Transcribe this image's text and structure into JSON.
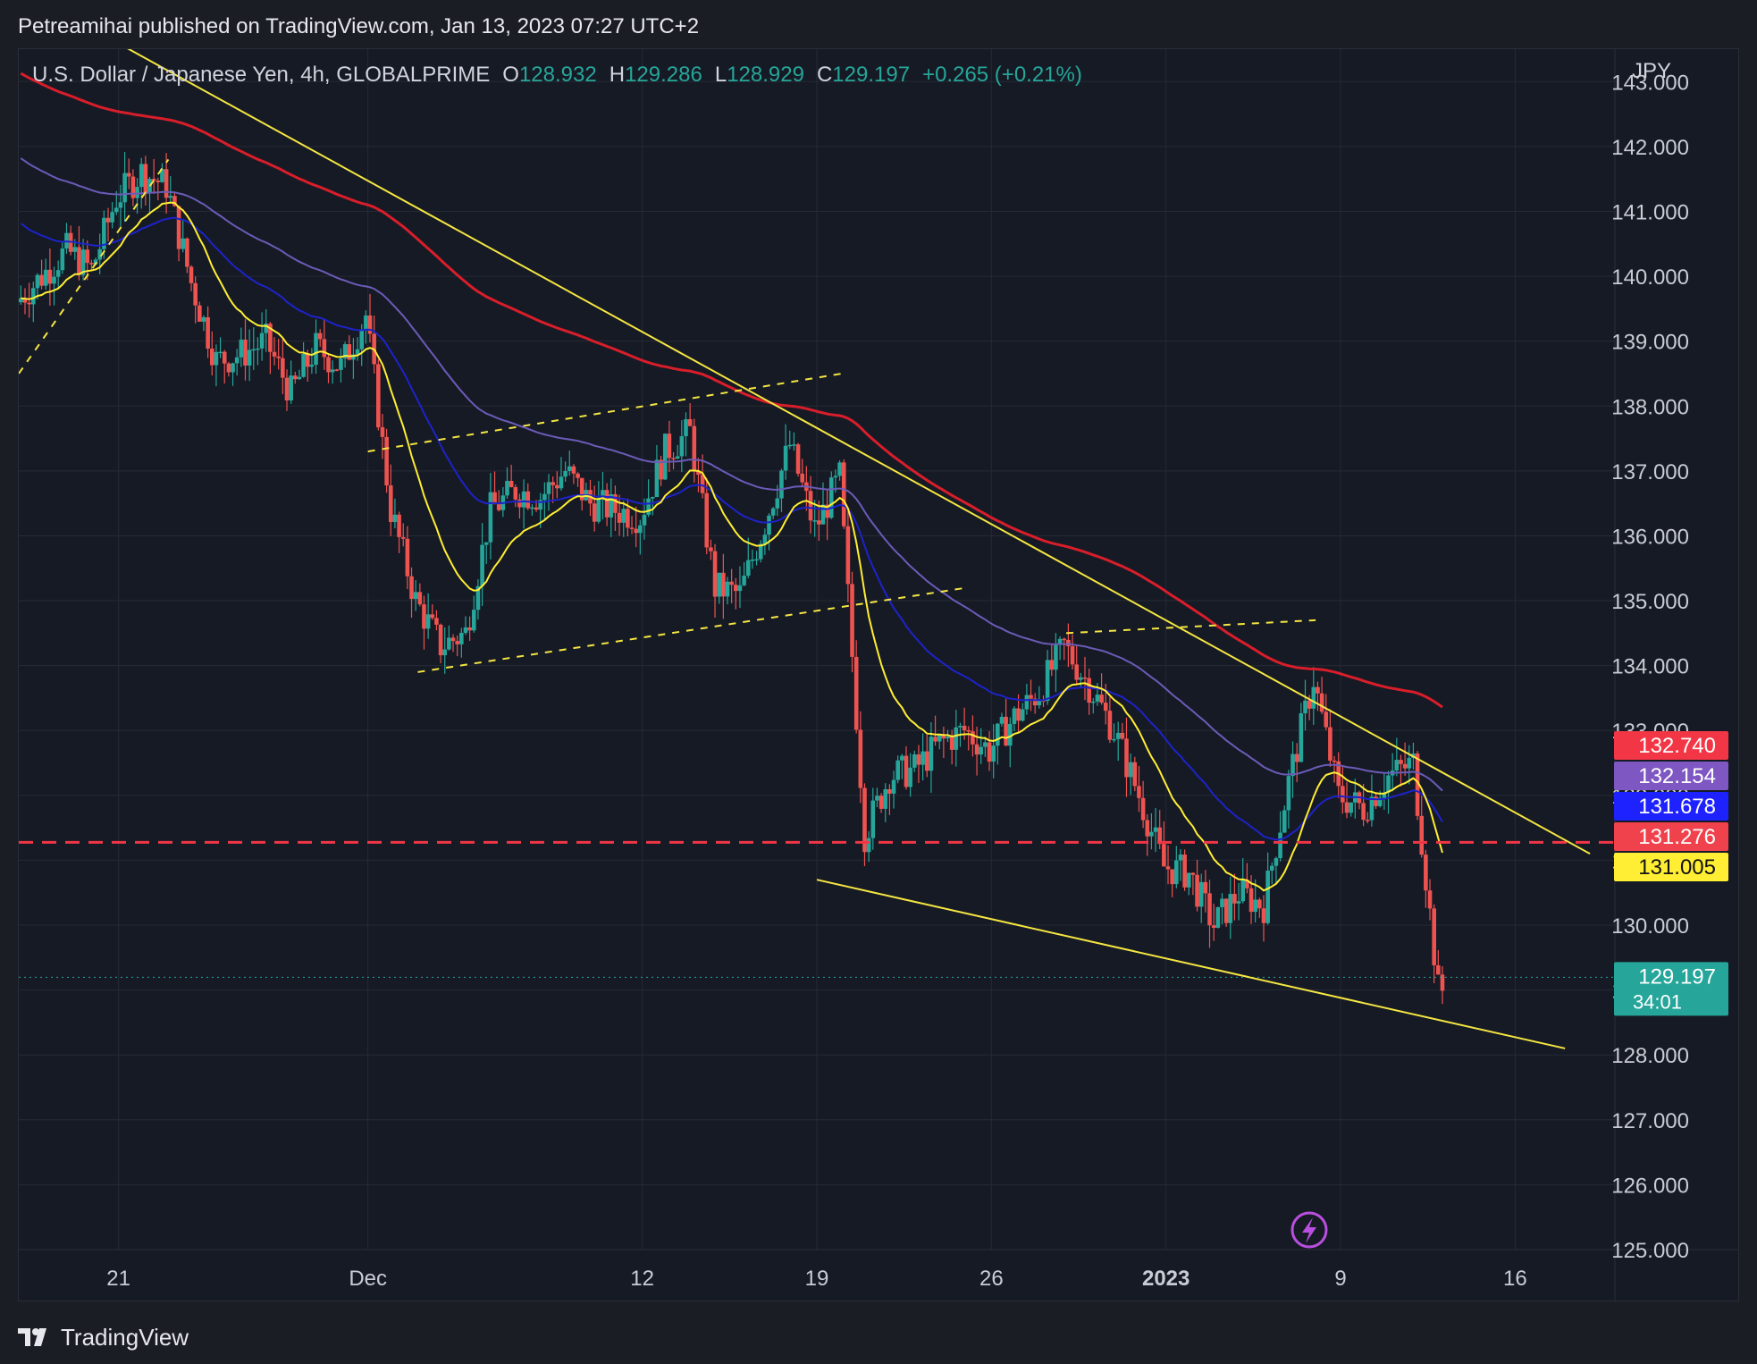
{
  "publisher": {
    "text": "Petreamihai published on TradingView.com, Jan 13, 2023 07:27 UTC+2"
  },
  "header": {
    "symbol": "U.S. Dollar / Japanese Yen, 4h, GLOBALPRIME",
    "open_label": "O",
    "open": "128.932",
    "high_label": "H",
    "high": "129.286",
    "low_label": "L",
    "low": "128.929",
    "close_label": "C",
    "close": "129.197",
    "change": "+0.265 (+0.21%)"
  },
  "axis": {
    "currency": "JPY"
  },
  "badges": [
    {
      "value": "132.740",
      "color": "#f23645"
    },
    {
      "value": "132.154",
      "color": "#7e57c2"
    },
    {
      "value": "131.678",
      "color": "#1e22ff"
    },
    {
      "value": "131.276",
      "color": "#f0424c"
    },
    {
      "value": "131.005",
      "color": "#ffee33"
    }
  ],
  "last_price": {
    "value": "129.197",
    "countdown": "34:01",
    "color": "#26a69a"
  },
  "footer": {
    "brand": "TradingView"
  },
  "colors": {
    "up": "#26a69a",
    "down": "#ef5350",
    "ma_red": "#d81e2a",
    "ma_purple": "#6b5bb8",
    "ma_blue": "#1d23c8",
    "ma_yellow": "#ffee33",
    "trendline": "#f5e642",
    "level": "#f23645"
  },
  "icons": {
    "alert": "lightning-icon",
    "logo": "tradingview-logo-icon"
  },
  "chart_data": {
    "type": "candlestick",
    "title": "U.S. Dollar / Japanese Yen, 4h, GLOBALPRIME",
    "ylim": [
      125,
      143.5
    ],
    "y_ticks": [
      "125.000",
      "126.000",
      "127.000",
      "128.000",
      "129.000",
      "130.000",
      "131.000",
      "132.000",
      "133.000",
      "134.000",
      "135.000",
      "136.000",
      "137.000",
      "138.000",
      "139.000",
      "140.000",
      "141.000",
      "142.000",
      "143.000"
    ],
    "x_ticks": [
      {
        "label": "21",
        "date": "2022-11-21",
        "bold": false
      },
      {
        "label": "Dec",
        "date": "2022-12-01",
        "bold": false
      },
      {
        "label": "12",
        "date": "2022-12-12",
        "bold": false
      },
      {
        "label": "19",
        "date": "2022-12-19",
        "bold": false
      },
      {
        "label": "26",
        "date": "2022-12-26",
        "bold": false
      },
      {
        "label": "2023",
        "date": "2023-01-02",
        "bold": true
      },
      {
        "label": "9",
        "date": "2023-01-09",
        "bold": false
      },
      {
        "label": "16",
        "date": "2023-01-16",
        "bold": false
      }
    ],
    "x_range": [
      "2022-11-17",
      "2023-01-20"
    ],
    "price_path": [
      [
        "2022-11-17",
        139.6
      ],
      [
        "2022-11-18",
        140.0
      ],
      [
        "2022-11-19",
        140.4
      ],
      [
        "2022-11-20",
        140.1
      ],
      [
        "2022-11-21",
        141.2
      ],
      [
        "2022-11-22",
        141.6
      ],
      [
        "2022-11-23",
        141.4
      ],
      [
        "2022-11-24",
        139.9
      ],
      [
        "2022-11-25",
        138.7
      ],
      [
        "2022-11-26",
        138.8
      ],
      [
        "2022-11-27",
        139.0
      ],
      [
        "2022-11-28",
        138.2
      ],
      [
        "2022-11-29",
        138.9
      ],
      [
        "2022-11-30",
        138.6
      ],
      [
        "2022-12-01",
        139.4
      ],
      [
        "2022-12-02",
        136.4
      ],
      [
        "2022-12-03",
        135.0
      ],
      [
        "2022-12-04",
        134.3
      ],
      [
        "2022-12-05",
        134.5
      ],
      [
        "2022-12-06",
        136.4
      ],
      [
        "2022-12-07",
        136.7
      ],
      [
        "2022-12-08",
        136.6
      ],
      [
        "2022-12-09",
        137.0
      ],
      [
        "2022-12-10",
        136.5
      ],
      [
        "2022-12-11",
        136.4
      ],
      [
        "2022-12-12",
        136.3
      ],
      [
        "2022-12-13",
        137.3
      ],
      [
        "2022-12-14",
        137.6
      ],
      [
        "2022-12-15",
        135.2
      ],
      [
        "2022-12-16",
        135.1
      ],
      [
        "2022-12-17",
        136.2
      ],
      [
        "2022-12-18",
        137.4
      ],
      [
        "2022-12-19",
        136.1
      ],
      [
        "2022-12-20",
        136.9
      ],
      [
        "2022-12-21",
        131.4
      ],
      [
        "2022-12-22",
        132.3
      ],
      [
        "2022-12-23",
        132.4
      ],
      [
        "2022-12-24",
        132.8
      ],
      [
        "2022-12-25",
        133.0
      ],
      [
        "2022-12-26",
        132.7
      ],
      [
        "2022-12-27",
        133.2
      ],
      [
        "2022-12-28",
        133.6
      ],
      [
        "2022-12-29",
        134.3
      ],
      [
        "2022-12-30",
        133.7
      ],
      [
        "2022-12-31",
        133.0
      ],
      [
        "2023-01-01",
        132.0
      ],
      [
        "2023-01-02",
        130.9
      ],
      [
        "2023-01-03",
        130.8
      ],
      [
        "2023-01-04",
        130.0
      ],
      [
        "2023-01-05",
        130.5
      ],
      [
        "2023-01-06",
        130.3
      ],
      [
        "2023-01-07",
        132.2
      ],
      [
        "2023-01-08",
        133.8
      ],
      [
        "2023-01-09",
        132.0
      ],
      [
        "2023-01-10",
        131.8
      ],
      [
        "2023-01-11",
        132.3
      ],
      [
        "2023-01-12",
        132.5
      ],
      [
        "2023-01-13",
        129.0
      ]
    ],
    "series": [
      {
        "name": "",
        "kind": "moving_average",
        "color": "#d81e2a",
        "last": 132.74
      },
      {
        "name": "",
        "kind": "moving_average",
        "color": "#6b5bb8",
        "last": 132.154
      },
      {
        "name": "",
        "kind": "moving_average",
        "color": "#1d23c8",
        "last": 131.678
      },
      {
        "name": "",
        "kind": "moving_average",
        "color": "#ffee33",
        "last": 131.005
      }
    ],
    "horizontal_levels": [
      {
        "price": 131.276,
        "style": "dashed",
        "color": "#f23645"
      }
    ],
    "trendlines": [
      {
        "style": "solid",
        "from": [
          "2022-11-20",
          143.8
        ],
        "to": [
          "2023-01-19",
          131.1
        ]
      },
      {
        "style": "solid",
        "from": [
          "2022-12-19",
          130.7
        ],
        "to": [
          "2023-01-18",
          128.1
        ]
      },
      {
        "style": "dashed",
        "from": [
          "2022-12-01",
          137.3
        ],
        "to": [
          "2022-12-20",
          138.5
        ]
      },
      {
        "style": "dashed",
        "from": [
          "2022-12-03",
          133.9
        ],
        "to": [
          "2022-12-25",
          135.2
        ]
      },
      {
        "style": "dashed",
        "from": [
          "2022-11-17",
          138.5
        ],
        "to": [
          "2022-11-23",
          141.8
        ]
      },
      {
        "style": "dashed",
        "from": [
          "2022-12-29",
          134.5
        ],
        "to": [
          "2023-01-08",
          134.7
        ]
      }
    ],
    "last_price": 129.197,
    "legend": "none",
    "grid": true
  }
}
